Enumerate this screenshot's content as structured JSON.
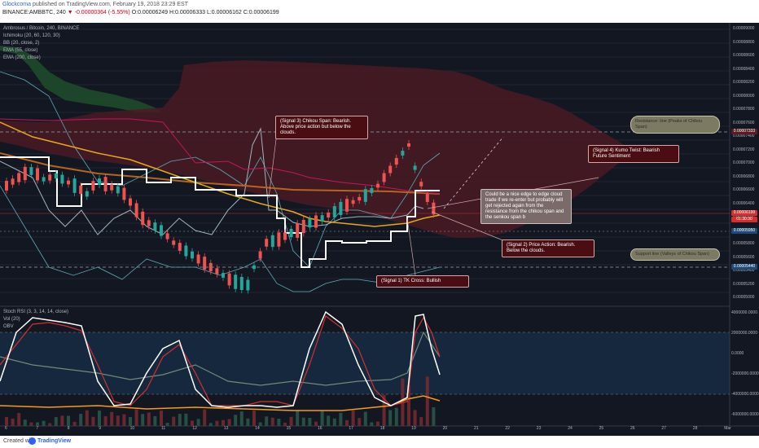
{
  "header": {
    "author": "Glockcoma",
    "published": "published on TradingView.com, February 19, 2018 23:29 EST",
    "symbol_line": "BINANCE:AMBBTC, 240",
    "change": "▼ -0.00000364 (-5.55%)",
    "ohlc": "O:0.00006249 H:0.00006333 L:0.00006162 C:0.00006199"
  },
  "legend": {
    "title": "Ambrosus / Bitcoin, 240, BINANCE",
    "ichimoku": "Ichimoku (20, 60, 120, 30)",
    "bb": "BB (20, close, 2)",
    "ema55": "EMA (55, close)",
    "ema200": "EMA (200, close)"
  },
  "sub_legend": {
    "stoch": "Stoch RSI (3, 3, 14, 14, close)",
    "vol": "Vol (20)",
    "obv": "OBV"
  },
  "price_axis": [
    "0.00009000",
    "0.00008800",
    "0.00008600",
    "0.00008400",
    "0.00008200",
    "0.00008000",
    "0.00007800",
    "0.00007600",
    "0.00007400",
    "0.00007200",
    "0.00007000",
    "0.00006800",
    "0.00006600",
    "0.00006400",
    "0.00006200",
    "0.00006000",
    "0.00005800",
    "0.00005600",
    "0.00005400",
    "0.00005200",
    "0.00005000"
  ],
  "price_tags": {
    "resistance": "0.00007333",
    "current": "0.00006199",
    "countdown": "01:30:30",
    "low1": "0.00005950",
    "support": "0.00005440"
  },
  "sub_axis": [
    "4000000.0000",
    "2000000.0000",
    "0.0000",
    "-2000000.0000",
    "-4000000.0000",
    "-6000000.0000"
  ],
  "x_axis": [
    "6",
    "7",
    "8",
    "9",
    "10",
    "11",
    "12",
    "13",
    "14",
    "15",
    "16",
    "17",
    "18",
    "19",
    "20",
    "21",
    "22",
    "23",
    "24",
    "25",
    "26",
    "27",
    "28",
    "Mar"
  ],
  "callouts": {
    "signal3": "(Signal 3) Chikou Span: Bearish. Above price action but below the clouds.",
    "signal4": "(Signal 4) Kumo Twist: Bearish Future Sentiment",
    "note": "Could be a nice edge to edge cloud trade if we re-enter but probably will get rejected again from the resistance from the chikou span and the senkou span b",
    "signal2": "(Signal 2) Price Action: Bearish. Below the clouds.",
    "signal1": "(Signal 1) TK Cross: Bullish",
    "resistance": "Resistance: line (Peaks of Chikou Span)",
    "support": "Support line (Valleys of Chikou Span)"
  },
  "footer": {
    "created": "Created with",
    "brand": "TradingView"
  },
  "colors": {
    "background": "#131722",
    "cloud_red": "#5a1a22",
    "cloud_green": "#1e4a2a",
    "up_candle": "#26a69a",
    "down_candle": "#ef5350",
    "ema55": "#e6a817",
    "ema200": "#b5651d",
    "kijun": "#ffffff",
    "bb": "#5fa8b8",
    "stoch_k": "#ffffff",
    "stoch_d": "#d32f2f",
    "obv": "#f59c1a"
  }
}
